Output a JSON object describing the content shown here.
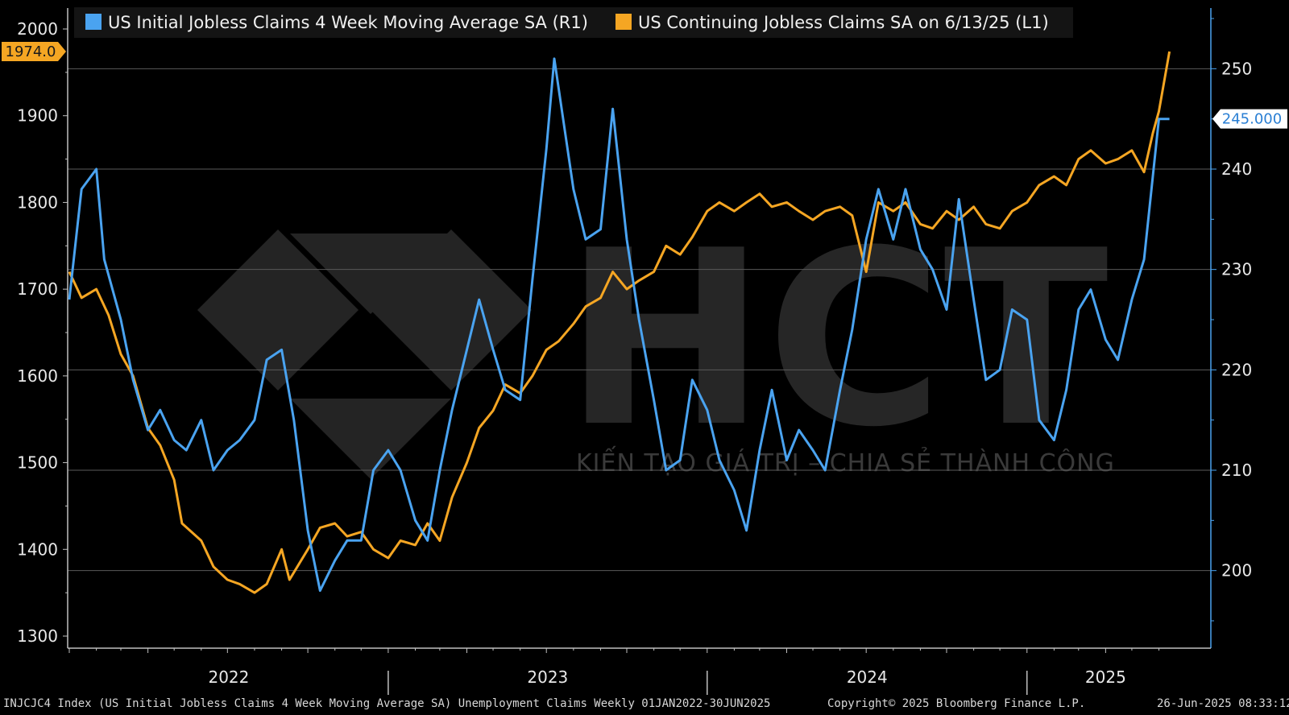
{
  "chart_data": {
    "type": "line",
    "series": [
      {
        "name": "US Continuing Jobless Claims SA on 6/13/25 (L1)",
        "axis": "left",
        "color": "#f5a623",
        "last_value_label": "1974.0",
        "points": [
          [
            "2022-01-01",
            1720
          ],
          [
            "2022-01-15",
            1690
          ],
          [
            "2022-02-01",
            1700
          ],
          [
            "2022-02-15",
            1670
          ],
          [
            "2022-03-01",
            1625
          ],
          [
            "2022-03-15",
            1600
          ],
          [
            "2022-04-01",
            1540
          ],
          [
            "2022-04-15",
            1520
          ],
          [
            "2022-05-01",
            1480
          ],
          [
            "2022-05-10",
            1430
          ],
          [
            "2022-06-01",
            1410
          ],
          [
            "2022-06-15",
            1380
          ],
          [
            "2022-07-01",
            1365
          ],
          [
            "2022-07-15",
            1360
          ],
          [
            "2022-08-01",
            1350
          ],
          [
            "2022-08-15",
            1360
          ],
          [
            "2022-09-01",
            1400
          ],
          [
            "2022-09-10",
            1365
          ],
          [
            "2022-10-01",
            1400
          ],
          [
            "2022-10-15",
            1425
          ],
          [
            "2022-11-01",
            1430
          ],
          [
            "2022-11-15",
            1415
          ],
          [
            "2022-12-01",
            1420
          ],
          [
            "2022-12-15",
            1400
          ],
          [
            "2023-01-01",
            1390
          ],
          [
            "2023-01-15",
            1410
          ],
          [
            "2023-02-01",
            1405
          ],
          [
            "2023-02-15",
            1430
          ],
          [
            "2023-03-01",
            1410
          ],
          [
            "2023-03-15",
            1460
          ],
          [
            "2023-04-01",
            1500
          ],
          [
            "2023-04-15",
            1540
          ],
          [
            "2023-05-01",
            1560
          ],
          [
            "2023-05-15",
            1590
          ],
          [
            "2023-06-01",
            1580
          ],
          [
            "2023-06-15",
            1600
          ],
          [
            "2023-07-01",
            1630
          ],
          [
            "2023-07-15",
            1640
          ],
          [
            "2023-08-01",
            1660
          ],
          [
            "2023-08-15",
            1680
          ],
          [
            "2023-09-01",
            1690
          ],
          [
            "2023-09-15",
            1720
          ],
          [
            "2023-10-01",
            1700
          ],
          [
            "2023-10-15",
            1710
          ],
          [
            "2023-11-01",
            1720
          ],
          [
            "2023-11-15",
            1750
          ],
          [
            "2023-12-01",
            1740
          ],
          [
            "2023-12-15",
            1760
          ],
          [
            "2024-01-01",
            1790
          ],
          [
            "2024-01-15",
            1800
          ],
          [
            "2024-02-01",
            1790
          ],
          [
            "2024-02-15",
            1800
          ],
          [
            "2024-03-01",
            1810
          ],
          [
            "2024-03-15",
            1795
          ],
          [
            "2024-04-01",
            1800
          ],
          [
            "2024-04-15",
            1790
          ],
          [
            "2024-05-01",
            1780
          ],
          [
            "2024-05-15",
            1790
          ],
          [
            "2024-06-01",
            1795
          ],
          [
            "2024-06-15",
            1785
          ],
          [
            "2024-07-01",
            1720
          ],
          [
            "2024-07-15",
            1800
          ],
          [
            "2024-08-01",
            1790
          ],
          [
            "2024-08-15",
            1800
          ],
          [
            "2024-09-01",
            1775
          ],
          [
            "2024-09-15",
            1770
          ],
          [
            "2024-10-01",
            1790
          ],
          [
            "2024-10-15",
            1780
          ],
          [
            "2024-11-01",
            1795
          ],
          [
            "2024-11-15",
            1775
          ],
          [
            "2024-12-01",
            1770
          ],
          [
            "2024-12-15",
            1790
          ],
          [
            "2025-01-01",
            1800
          ],
          [
            "2025-01-15",
            1820
          ],
          [
            "2025-02-01",
            1830
          ],
          [
            "2025-02-15",
            1820
          ],
          [
            "2025-03-01",
            1850
          ],
          [
            "2025-03-15",
            1860
          ],
          [
            "2025-04-01",
            1845
          ],
          [
            "2025-04-15",
            1850
          ],
          [
            "2025-05-01",
            1860
          ],
          [
            "2025-05-15",
            1835
          ],
          [
            "2025-05-25",
            1880
          ],
          [
            "2025-06-01",
            1905
          ],
          [
            "2025-06-13",
            1974
          ]
        ]
      },
      {
        "name": "US Initial Jobless Claims 4 Week Moving Average SA (R1)",
        "axis": "right",
        "color": "#4aa3f0",
        "last_value_label": "245.000",
        "points": [
          [
            "2022-01-01",
            227
          ],
          [
            "2022-01-15",
            238
          ],
          [
            "2022-02-01",
            240
          ],
          [
            "2022-02-10",
            231
          ],
          [
            "2022-03-01",
            225
          ],
          [
            "2022-03-15",
            219
          ],
          [
            "2022-04-01",
            214
          ],
          [
            "2022-04-15",
            216
          ],
          [
            "2022-05-01",
            213
          ],
          [
            "2022-05-15",
            212
          ],
          [
            "2022-06-01",
            215
          ],
          [
            "2022-06-15",
            210
          ],
          [
            "2022-07-01",
            212
          ],
          [
            "2022-07-15",
            213
          ],
          [
            "2022-08-01",
            215
          ],
          [
            "2022-08-15",
            221
          ],
          [
            "2022-09-01",
            222
          ],
          [
            "2022-09-15",
            215
          ],
          [
            "2022-10-01",
            204
          ],
          [
            "2022-10-15",
            198
          ],
          [
            "2022-11-01",
            201
          ],
          [
            "2022-11-15",
            203
          ],
          [
            "2022-12-01",
            203
          ],
          [
            "2022-12-15",
            210
          ],
          [
            "2023-01-01",
            212
          ],
          [
            "2023-01-15",
            210
          ],
          [
            "2023-02-01",
            205
          ],
          [
            "2023-02-15",
            203
          ],
          [
            "2023-03-01",
            210
          ],
          [
            "2023-03-15",
            216
          ],
          [
            "2023-04-01",
            222
          ],
          [
            "2023-04-15",
            227
          ],
          [
            "2023-05-01",
            222
          ],
          [
            "2023-05-15",
            218
          ],
          [
            "2023-06-01",
            217
          ],
          [
            "2023-06-15",
            229
          ],
          [
            "2023-07-01",
            242
          ],
          [
            "2023-07-10",
            251
          ],
          [
            "2023-08-01",
            238
          ],
          [
            "2023-08-15",
            233
          ],
          [
            "2023-09-01",
            234
          ],
          [
            "2023-09-15",
            246
          ],
          [
            "2023-10-01",
            233
          ],
          [
            "2023-10-15",
            225
          ],
          [
            "2023-11-01",
            217
          ],
          [
            "2023-11-15",
            210
          ],
          [
            "2023-12-01",
            211
          ],
          [
            "2023-12-15",
            219
          ],
          [
            "2024-01-01",
            216
          ],
          [
            "2024-01-15",
            211
          ],
          [
            "2024-02-01",
            208
          ],
          [
            "2024-02-15",
            204
          ],
          [
            "2024-03-01",
            212
          ],
          [
            "2024-03-15",
            218
          ],
          [
            "2024-04-01",
            211
          ],
          [
            "2024-04-15",
            214
          ],
          [
            "2024-05-01",
            212
          ],
          [
            "2024-05-15",
            210
          ],
          [
            "2024-06-01",
            218
          ],
          [
            "2024-06-15",
            224
          ],
          [
            "2024-07-01",
            233
          ],
          [
            "2024-07-15",
            238
          ],
          [
            "2024-08-01",
            233
          ],
          [
            "2024-08-15",
            238
          ],
          [
            "2024-09-01",
            232
          ],
          [
            "2024-09-15",
            230
          ],
          [
            "2024-10-01",
            226
          ],
          [
            "2024-10-15",
            237
          ],
          [
            "2024-11-01",
            227
          ],
          [
            "2024-11-15",
            219
          ],
          [
            "2024-12-01",
            220
          ],
          [
            "2024-12-15",
            226
          ],
          [
            "2025-01-01",
            225
          ],
          [
            "2025-01-15",
            215
          ],
          [
            "2025-02-01",
            213
          ],
          [
            "2025-02-15",
            218
          ],
          [
            "2025-03-01",
            226
          ],
          [
            "2025-03-15",
            228
          ],
          [
            "2025-04-01",
            223
          ],
          [
            "2025-04-15",
            221
          ],
          [
            "2025-05-01",
            227
          ],
          [
            "2025-05-15",
            231
          ],
          [
            "2025-06-01",
            245
          ],
          [
            "2025-06-13",
            245
          ]
        ]
      }
    ],
    "left_axis": {
      "min": 1300,
      "max": 2000,
      "ticks": [
        1300,
        1400,
        1500,
        1600,
        1700,
        1800,
        1900,
        2000
      ]
    },
    "right_axis": {
      "min": 195,
      "max": 255,
      "ticks": [
        200,
        210,
        220,
        230,
        240,
        250
      ]
    },
    "x_axis": {
      "start": "2022-01-01",
      "end": "2025-06-30",
      "year_labels": [
        "2022",
        "2023",
        "2024",
        "2025"
      ],
      "year_starts": [
        "2022-01-01",
        "2023-01-01",
        "2024-01-01",
        "2025-01-01",
        "2025-06-30"
      ]
    },
    "grid": true,
    "legend_placement": "top-left"
  },
  "footer": {
    "left": "INJCJC4 Index (US Initial Jobless Claims 4 Week Moving Average SA) Unemployment Claims  Weekly 01JAN2022-30JUN2025",
    "center": "Copyright© 2025 Bloomberg Finance L.P.",
    "right": "26-Jun-2025 08:33:12"
  },
  "watermark": {
    "logo_text": "HCT",
    "tagline": "KIẾN TẠO GIÁ TRỊ – CHIA SẺ THÀNH CÔNG"
  }
}
